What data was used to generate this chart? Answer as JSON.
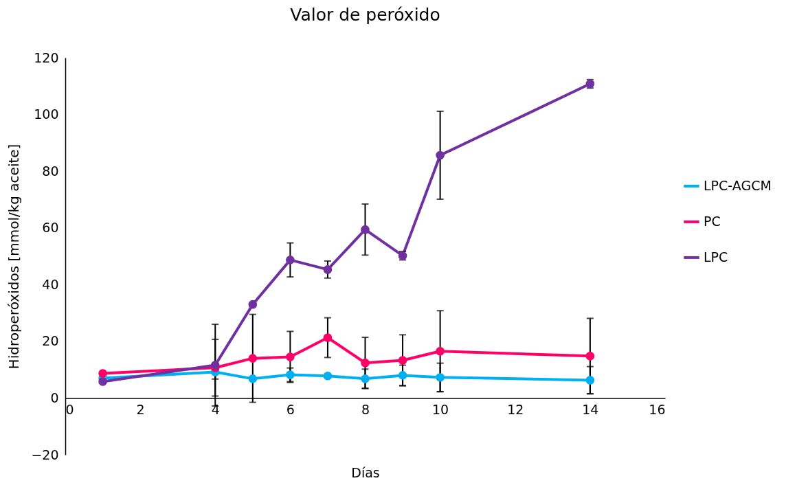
{
  "chart_data": {
    "type": "line",
    "title": "Valor de peróxido",
    "xlabel": "Días",
    "ylabel": "Hidroperóxidos [mmol/kg aceite]",
    "x": [
      1,
      4,
      5,
      6,
      7,
      8,
      9,
      10,
      14
    ],
    "series": [
      {
        "name": "LPC-AGCM",
        "color": "#00b0f0",
        "values": [
          7,
          9.2,
          6.8,
          8.2,
          7.8,
          6.8,
          8,
          7.3,
          6.3
        ],
        "errors": [
          null,
          2.5,
          null,
          2.4,
          null,
          3.4,
          3.6,
          5,
          4.8
        ]
      },
      {
        "name": "PC",
        "color": "#ff0066",
        "values": [
          8.7,
          10.7,
          14,
          14.5,
          21.3,
          12.4,
          13.3,
          16.5,
          14.8
        ],
        "errors": [
          null,
          10,
          15.5,
          9,
          7,
          9,
          9,
          14.3,
          13.3
        ]
      },
      {
        "name": "LPC",
        "color": "#7030a0",
        "values": [
          5.8,
          11.6,
          33,
          48.7,
          45.3,
          59.4,
          50.2,
          85.6,
          110.8
        ],
        "errors": [
          null,
          14.4,
          null,
          6,
          3,
          9,
          1.5,
          15.5,
          1.5
        ]
      }
    ],
    "xlim": [
      0,
      16
    ],
    "xticks": [
      0,
      2,
      4,
      6,
      8,
      10,
      12,
      14,
      16
    ],
    "ylim": [
      -20,
      120
    ],
    "yticks": [
      -20,
      0,
      20,
      40,
      60,
      80,
      100,
      120
    ],
    "grid": false,
    "legend": "right",
    "marker": "circle",
    "line_style": "solid"
  }
}
